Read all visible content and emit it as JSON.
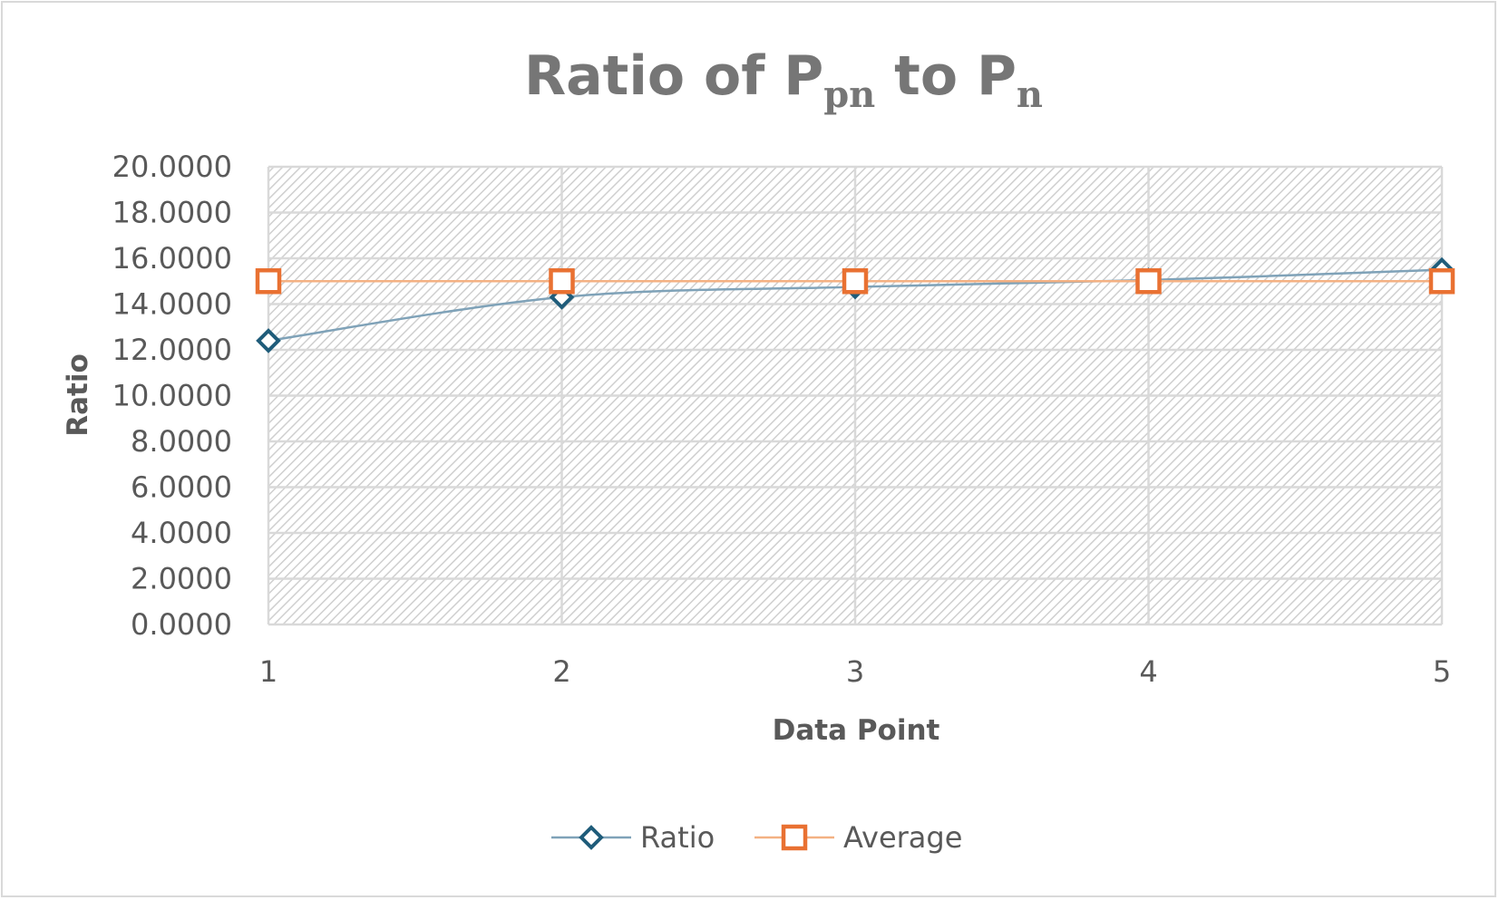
{
  "chart_data": {
    "type": "line",
    "title": {
      "prefix": "Ratio of P",
      "sub1": "pn",
      "middle": " to P",
      "sub2": "n"
    },
    "xlabel": "Data Point",
    "ylabel": "Ratio",
    "x": [
      1,
      2,
      3,
      4,
      5
    ],
    "ylim": [
      0,
      20
    ],
    "ytick_step": 2,
    "ytick_decimals": 4,
    "grid": true,
    "legend_position": "bottom",
    "series": [
      {
        "name": "Ratio",
        "values": [
          12.4,
          14.3,
          14.75,
          15.05,
          15.5
        ],
        "color": "#1f5c7a",
        "line_color": "#7fa2b8",
        "marker": "diamond",
        "smooth": true
      },
      {
        "name": "Average",
        "values": [
          15.0,
          15.0,
          15.0,
          15.0,
          15.0
        ],
        "color": "#e97132",
        "line_color": "#f4b183",
        "marker": "square",
        "smooth": false
      }
    ]
  }
}
